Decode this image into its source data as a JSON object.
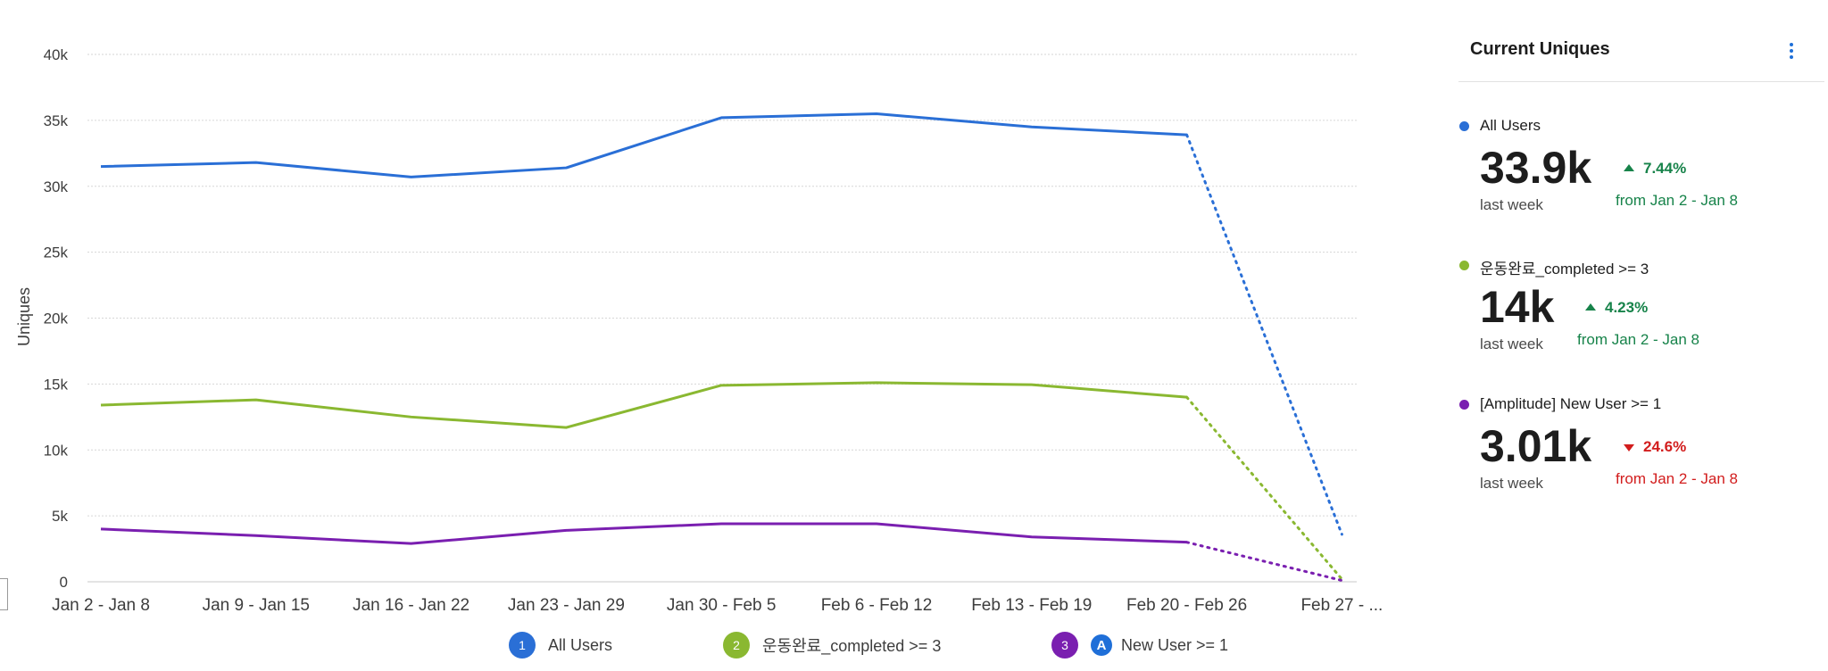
{
  "chart_data": {
    "type": "line",
    "ylabel": "Uniques",
    "xlabel": "",
    "ylim": [
      0,
      40000
    ],
    "yticks": [
      {
        "value": 0,
        "label": "0"
      },
      {
        "value": 5000,
        "label": "5k"
      },
      {
        "value": 10000,
        "label": "10k"
      },
      {
        "value": 15000,
        "label": "15k"
      },
      {
        "value": 20000,
        "label": "20k"
      },
      {
        "value": 25000,
        "label": "25k"
      },
      {
        "value": 30000,
        "label": "30k"
      },
      {
        "value": 35000,
        "label": "35k"
      },
      {
        "value": 40000,
        "label": "40k"
      }
    ],
    "categories": [
      "Jan 2 - Jan 8",
      "Jan 9 - Jan 15",
      "Jan 16 - Jan 22",
      "Jan 23 - Jan 29",
      "Jan 30 - Feb 5",
      "Feb 6 - Feb 12",
      "Feb 13 - Feb 19",
      "Feb 20 - Feb 26",
      "Feb 27 - ..."
    ],
    "grid": true,
    "incomplete_last_period": true,
    "series": [
      {
        "name": "All Users",
        "color": "#2a6fd6",
        "values": [
          31500,
          31800,
          30700,
          31400,
          35200,
          35500,
          34500,
          33900,
          3600
        ]
      },
      {
        "name": "운동완료_completed >= 3",
        "color": "#8ab831",
        "values": [
          13400,
          13800,
          12500,
          11700,
          14900,
          15100,
          14950,
          14000,
          200
        ]
      },
      {
        "name": "New User >= 1",
        "color": "#7a1fb0",
        "values": [
          4000,
          3500,
          2900,
          3900,
          4400,
          4400,
          3400,
          3000,
          100
        ]
      }
    ]
  },
  "legend": [
    {
      "number": "1",
      "label": "All Users",
      "color": "#2a6fd6"
    },
    {
      "number": "2",
      "label": "운동완료_completed >= 3",
      "color": "#8ab831"
    },
    {
      "number": "3",
      "icon": "amplitude-icon",
      "label": "New User >= 1",
      "color": "#7a1fb0"
    }
  ],
  "sidebar": {
    "title": "Current Uniques",
    "metrics": [
      {
        "name": "All Users",
        "color": "#2a6fd6",
        "value": "33.9k",
        "sub": "last week",
        "change": "7.44%",
        "direction": "up",
        "from": "from Jan 2 - Jan 8",
        "change_color": "#17834a"
      },
      {
        "name": "운동완료_completed >= 3",
        "color": "#8ab831",
        "value": "14k",
        "sub": "last week",
        "change": "4.23%",
        "direction": "up",
        "from": "from Jan 2 - Jan 8",
        "change_color": "#17834a"
      },
      {
        "name": "[Amplitude] New User >= 1",
        "color": "#7a1fb0",
        "value": "3.01k",
        "sub": "last week",
        "change": "24.6%",
        "direction": "down",
        "from": "from Jan 2 - Jan 8",
        "change_color": "#d21d1d"
      }
    ]
  }
}
